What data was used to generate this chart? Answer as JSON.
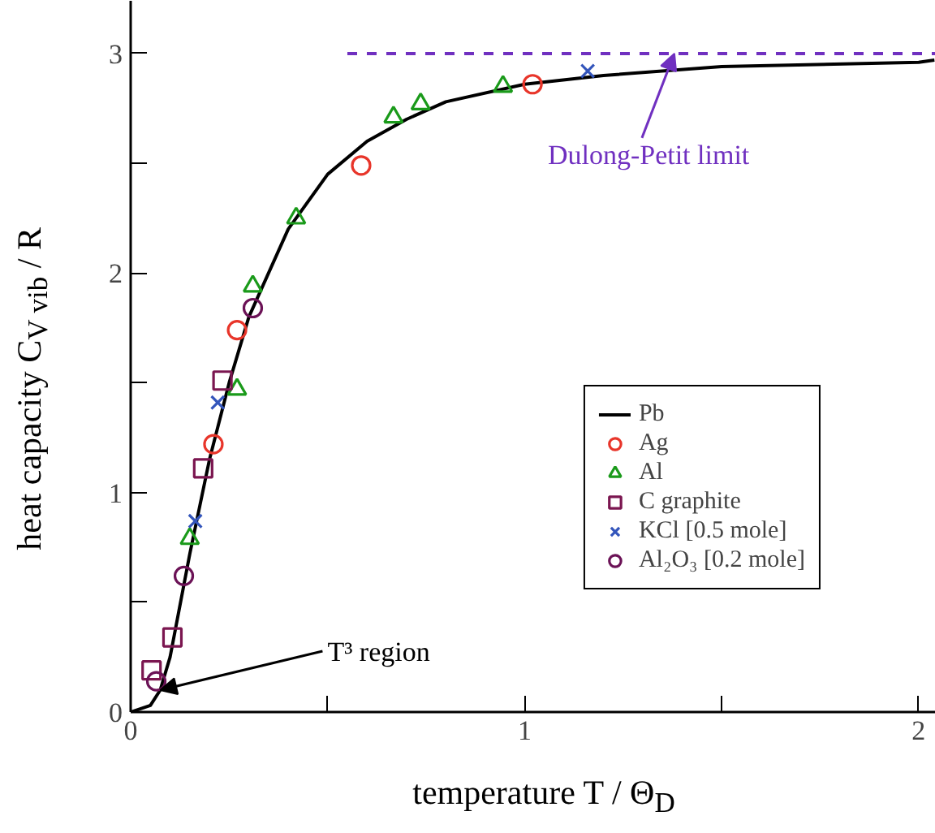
{
  "chart_data": {
    "type": "scatter",
    "xlabel": "temperature T / Θ$_{D}$",
    "ylabel": "heat capacity C$_{V vib}$ / R",
    "xlim": [
      0,
      2.06
    ],
    "ylim": [
      0,
      3.24
    ],
    "xticks": [
      0,
      {
        "value": 0.5,
        "label": null
      },
      1,
      {
        "value": 1.5,
        "label": null
      },
      2
    ],
    "yticks": [
      0,
      {
        "value": 0.5,
        "label": null
      },
      1,
      {
        "value": 1.5,
        "label": null
      },
      2,
      {
        "value": 2.5,
        "label": null
      },
      3
    ],
    "grid": false,
    "legend": "bottom right",
    "series": [
      {
        "name": "Pb",
        "type": "line",
        "line_style": "solid",
        "marker": "none",
        "color": "#000000",
        "x": [
          0,
          0.05,
          0.075,
          0.1,
          0.15,
          0.2,
          0.25,
          0.3,
          0.4,
          0.5,
          0.6,
          0.7,
          0.8,
          1.0,
          1.2,
          1.5,
          2.0,
          2.04
        ],
        "values": [
          0,
          0.03,
          0.1,
          0.25,
          0.72,
          1.15,
          1.5,
          1.8,
          2.2,
          2.45,
          2.6,
          2.7,
          2.78,
          2.86,
          2.9,
          2.94,
          2.96,
          2.97
        ]
      },
      {
        "name": "Ag",
        "marker": "circle",
        "color": "#e8352a",
        "x": [
          0.21,
          0.27,
          0.585,
          1.02
        ],
        "values": [
          1.22,
          1.74,
          2.49,
          2.86
        ]
      },
      {
        "name": "Al",
        "marker": "triangle",
        "color": "#1a9a1a",
        "x": [
          0.15,
          0.27,
          0.31,
          0.42,
          0.667,
          0.736,
          0.945
        ],
        "values": [
          0.79,
          1.47,
          1.94,
          2.25,
          2.71,
          2.77,
          2.85
        ]
      },
      {
        "name": "C graphite",
        "marker": "square",
        "color": "#7b1650",
        "x": [
          0.053,
          0.106,
          0.184,
          0.233
        ],
        "values": [
          0.19,
          0.34,
          1.11,
          1.51
        ]
      },
      {
        "name": "KCl [0.5 mole]",
        "marker": "cross",
        "color": "#3355bb",
        "x": [
          0.164,
          0.221,
          1.16
        ],
        "values": [
          0.87,
          1.41,
          2.92
        ]
      },
      {
        "name": "Al₂O₃ [0.2 mole]",
        "marker": "circle",
        "color": "#6b1256",
        "x": [
          0.065,
          0.135,
          0.31
        ],
        "values": [
          0.14,
          0.62,
          1.84
        ]
      },
      {
        "type": "line",
        "line_style": "dashed",
        "marker": "none",
        "color": "#7030c0",
        "x": [
          0.55,
          2.06
        ],
        "values": [
          3,
          3
        ]
      }
    ],
    "annotations": [
      {
        "text": "Dulong-Petit limit",
        "x": 1.38,
        "y": 3
      },
      {
        "text": "T³ region",
        "x": 0.075,
        "y": 0.1
      }
    ]
  }
}
